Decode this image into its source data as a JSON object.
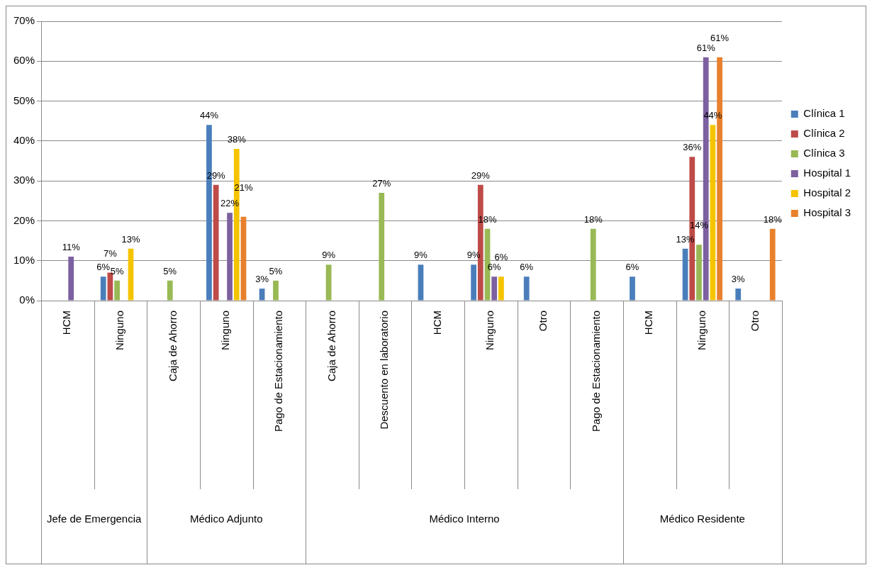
{
  "chart_data": {
    "type": "bar",
    "categories": [
      "HCM",
      "Ninguno",
      "Caja de Ahorro",
      "Ninguno",
      "Pago de Estacionamiento",
      "Caja de Ahorro",
      "Descuento en laboratorio",
      "HCM",
      "Ninguno",
      "Otro",
      "Pago de Estacionamiento",
      "HCM",
      "Ninguno",
      "Otro"
    ],
    "series": [
      {
        "name": "Clínica 1",
        "color": "#4a7ebb",
        "values": [
          null,
          6,
          null,
          44,
          3,
          null,
          null,
          9,
          9,
          6,
          null,
          6,
          13,
          3
        ],
        "value_labels": [
          null,
          "6%",
          null,
          "44%",
          "3%",
          null,
          null,
          "9%",
          "9%",
          "6%",
          null,
          "6%",
          "13%",
          "3%"
        ]
      },
      {
        "name": "Clínica 2",
        "color": "#be4b48",
        "values": [
          null,
          7,
          null,
          29,
          null,
          null,
          null,
          null,
          29,
          null,
          null,
          null,
          36,
          null
        ],
        "value_labels": [
          null,
          "7%",
          null,
          "29%",
          null,
          null,
          null,
          null,
          "29%",
          null,
          null,
          null,
          "36%",
          null
        ]
      },
      {
        "name": "Clínica 3",
        "color": "#98b954",
        "values": [
          null,
          5,
          5,
          null,
          5,
          9,
          27,
          null,
          18,
          null,
          18,
          null,
          14,
          null
        ],
        "value_labels": [
          null,
          "5%",
          "5%",
          null,
          "5%",
          "9%",
          "27%",
          null,
          "18%",
          null,
          "18%",
          null,
          "14%",
          null
        ]
      },
      {
        "name": "Hospital 1",
        "color": "#7d60a0",
        "values": [
          11,
          null,
          null,
          22,
          null,
          null,
          null,
          null,
          6,
          null,
          null,
          null,
          61,
          null
        ],
        "value_labels": [
          "11%",
          null,
          null,
          "22%",
          null,
          null,
          null,
          null,
          "6%",
          null,
          null,
          null,
          "61%",
          null
        ]
      },
      {
        "name": "Hospital 2",
        "color": "#f5c400",
        "values": [
          null,
          13,
          null,
          38,
          null,
          null,
          null,
          null,
          6,
          null,
          null,
          null,
          44,
          null
        ],
        "value_labels": [
          null,
          "13%",
          null,
          "38%",
          null,
          null,
          null,
          null,
          "6%",
          null,
          null,
          null,
          "44%",
          null
        ]
      },
      {
        "name": "Hospital 3",
        "color": "#e8802c",
        "values": [
          null,
          null,
          null,
          21,
          null,
          null,
          null,
          null,
          null,
          null,
          null,
          null,
          61,
          18
        ],
        "value_labels": [
          null,
          null,
          null,
          "21%",
          null,
          null,
          null,
          null,
          null,
          null,
          null,
          null,
          "61%",
          "18%"
        ]
      }
    ],
    "ylim": [
      0,
      70
    ],
    "yticks": [
      {
        "value": 0,
        "label": "0%"
      },
      {
        "value": 10,
        "label": "10%"
      },
      {
        "value": 20,
        "label": "20%"
      },
      {
        "value": 30,
        "label": "30%"
      },
      {
        "value": 40,
        "label": "40%"
      },
      {
        "value": 50,
        "label": "50%"
      },
      {
        "value": 60,
        "label": "60%"
      },
      {
        "value": 70,
        "label": "70%"
      }
    ],
    "grid": "y",
    "legend": "right",
    "annotations": [
      "Jefe de Emergencia",
      "Médico Adjunto",
      "Médico Interno",
      "Médico Residente"
    ]
  }
}
